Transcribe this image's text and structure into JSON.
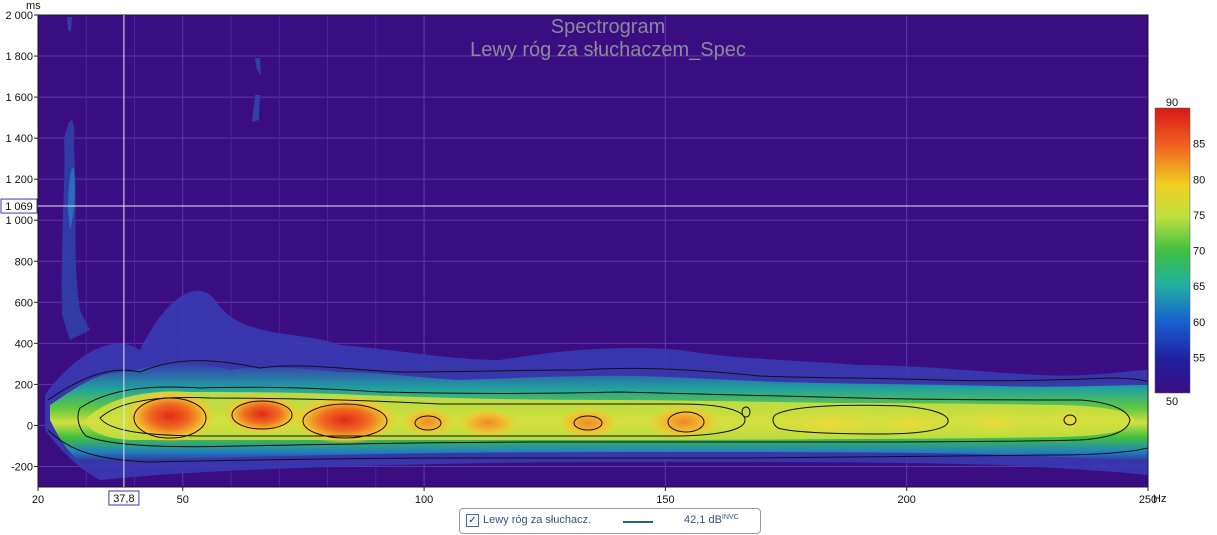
{
  "chart_data": {
    "type": "heatmap",
    "title": "Spectrogram",
    "subtitle": "Lewy róg za słuchaczem_Spec",
    "ylabel": "ms",
    "xunit": "Hz",
    "xlim": [
      20,
      250
    ],
    "ylim": [
      -300,
      2000
    ],
    "x_ticks": [
      "20",
      "50",
      "100",
      "150",
      "200",
      "250"
    ],
    "x_tick_values": [
      20,
      50,
      100,
      150,
      200,
      250
    ],
    "y_ticks": [
      "2 000",
      "1 800",
      "1 600",
      "1 400",
      "1 200",
      "1 000",
      "800",
      "600",
      "400",
      "200",
      "0",
      "-200"
    ],
    "y_tick_values": [
      2000,
      1800,
      1600,
      1400,
      1200,
      1000,
      800,
      600,
      400,
      200,
      0,
      -200
    ],
    "grid": true,
    "background_color": "#3a0d82",
    "cursor": {
      "x_label": "37,8",
      "y_label": "1 069",
      "x": 37.8,
      "y": 1069
    },
    "colorbar": {
      "min": 50,
      "max": 90,
      "ticks": [
        "90",
        "85",
        "80",
        "75",
        "70",
        "65",
        "60",
        "55",
        "50"
      ],
      "tick_values": [
        90,
        85,
        80,
        75,
        70,
        65,
        60,
        55,
        50
      ]
    },
    "hotspots": [
      {
        "freq": 49,
        "time_ms": 10,
        "level_db": 88
      },
      {
        "freq": 65,
        "time_ms": 15,
        "level_db": 86
      },
      {
        "freq": 83,
        "time_ms": 10,
        "level_db": 88
      },
      {
        "freq": 101,
        "time_ms": 0,
        "level_db": 83
      },
      {
        "freq": 114,
        "time_ms": 0,
        "level_db": 82
      },
      {
        "freq": 134,
        "time_ms": 0,
        "level_db": 83
      },
      {
        "freq": 153,
        "time_ms": 0,
        "level_db": 84
      },
      {
        "freq": 172,
        "time_ms": 0,
        "level_db": 81
      },
      {
        "freq": 185,
        "time_ms": 0,
        "level_db": 81
      },
      {
        "freq": 200,
        "time_ms": 0,
        "level_db": 81
      },
      {
        "freq": 218,
        "time_ms": 0,
        "level_db": 79
      },
      {
        "freq": 234,
        "time_ms": 0,
        "level_db": 78
      }
    ],
    "series": [
      {
        "name": "Lewy róg za słuchacz.",
        "value": "42,1 dB",
        "suffix": "INVC",
        "color": "#1a6a7a"
      }
    ]
  }
}
